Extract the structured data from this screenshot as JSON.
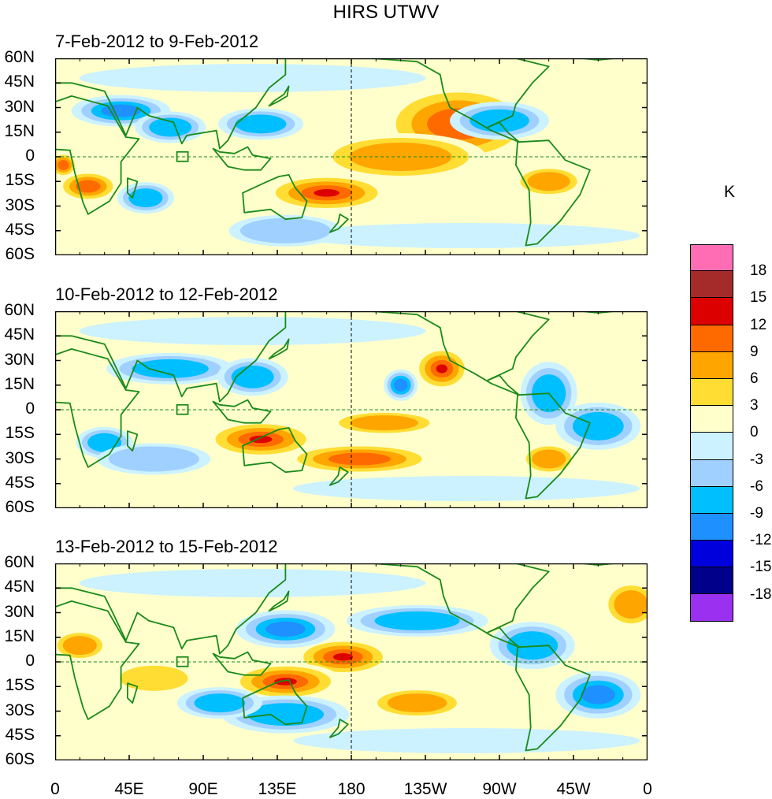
{
  "title": "HIRS UTWV",
  "panels": [
    {
      "period": "7-Feb-2012 to 9-Feb-2012"
    },
    {
      "period": "10-Feb-2012 to 12-Feb-2012"
    },
    {
      "period": "13-Feb-2012 to 15-Feb-2012"
    }
  ],
  "lat_labels": [
    "60N",
    "45N",
    "30N",
    "15N",
    "0",
    "15S",
    "30S",
    "45S",
    "60S"
  ],
  "lon_labels": [
    "0",
    "45E",
    "90E",
    "135E",
    "180",
    "135W",
    "90W",
    "45W",
    "0"
  ],
  "colorbar": {
    "unit": "K",
    "labels": [
      "18",
      "15",
      "12",
      "9",
      "6",
      "3",
      "0",
      "-3",
      "-6",
      "-9",
      "-12",
      "-15",
      "-18"
    ],
    "colors": [
      "#ff6eb4",
      "#a52a2a",
      "#dd0000",
      "#ff6a00",
      "#ffa500",
      "#ffdd33",
      "#ffffcc",
      "#ccf2ff",
      "#a0d0ff",
      "#00bfff",
      "#1e90ff",
      "#0000dd",
      "#00008b",
      "#9a30f0"
    ]
  },
  "map_colors": {
    "coast": "#1a8a1a",
    "base": "#ffffcc"
  }
}
